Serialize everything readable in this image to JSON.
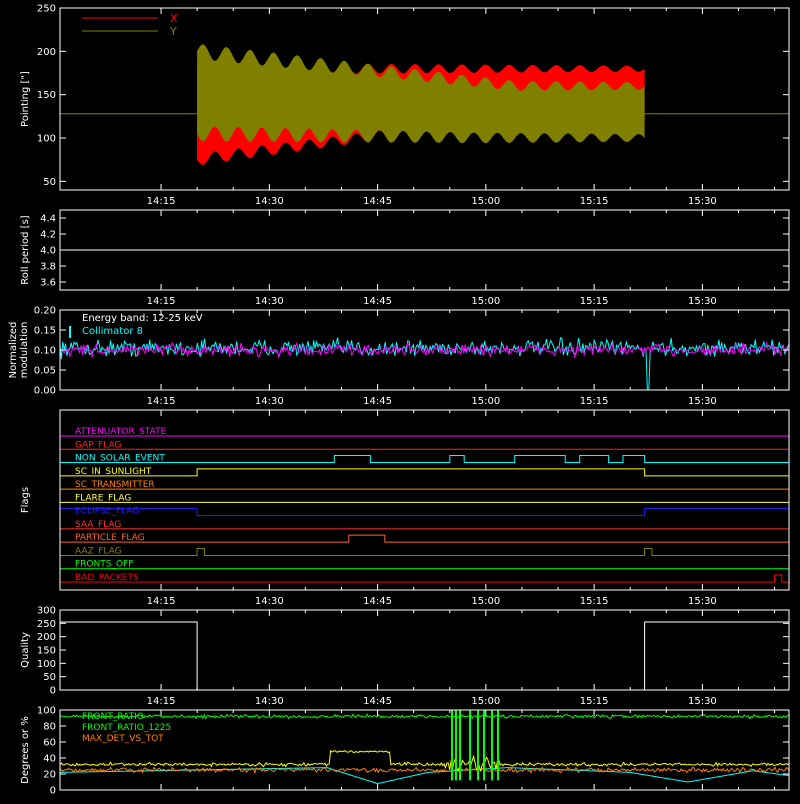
{
  "colors": {
    "background": "#000000",
    "axis": "#ffffff",
    "x_pointing": "#ff0000",
    "y_pointing": "#808000",
    "collimator": "#00ffff",
    "modulation": "#ff00ff",
    "quality": "#ffffff"
  },
  "time_ticks": [
    "14:15",
    "14:30",
    "14:45",
    "15:00",
    "15:15",
    "15:30"
  ],
  "chart_data": [
    {
      "type": "area",
      "panel": "pointing",
      "ylabel": "Pointing [\"]",
      "ylim": [
        40,
        250
      ],
      "yticks": [
        "50",
        "100",
        "150",
        "200",
        "250"
      ],
      "xrange": [
        "14:01",
        "15:42"
      ],
      "legend": {
        "placement": "top-left",
        "entries": [
          {
            "name": "X",
            "color": "#ff0000"
          },
          {
            "name": "Y",
            "color": "#808000"
          }
        ]
      },
      "series": [
        {
          "name": "X",
          "color": "#ff0000",
          "start": "14:20",
          "end": "15:22",
          "band_start": [
            75,
            180
          ],
          "band_end": [
            118,
            180
          ]
        },
        {
          "name": "Y",
          "color": "#808000",
          "start": "14:20",
          "end": "15:22",
          "band_start": [
            105,
            200
          ],
          "band_end": [
            100,
            160
          ]
        }
      ],
      "baseline": 128
    },
    {
      "type": "line",
      "panel": "roll",
      "ylabel": "Roll period [s]",
      "ylim": [
        3.5,
        4.5
      ],
      "yticks": [
        "3.6",
        "3.8",
        "4.0",
        "4.2",
        "4.4"
      ],
      "series": [
        {
          "name": "",
          "color": "#ffffff",
          "values": [
            4.0,
            4.0
          ]
        }
      ]
    },
    {
      "type": "line",
      "panel": "modulation",
      "ylabel": "Normalized modulation",
      "ylim": [
        0,
        0.2
      ],
      "yticks": [
        "0.00",
        "0.05",
        "0.10",
        "0.15",
        "0.20"
      ],
      "annotation": "Energy band: 12-25 keV",
      "legend": {
        "placement": "top-left",
        "entries": [
          {
            "name": "Collimator 8",
            "color": "#00ffff"
          }
        ]
      },
      "series": [
        {
          "name": "Collimator 8",
          "color": "#00ffff",
          "mean": 0.105
        },
        {
          "name": "",
          "color": "#ff00ff",
          "mean": 0.1
        }
      ]
    },
    {
      "type": "line",
      "panel": "flags",
      "ylabel": "Flags",
      "flags": [
        {
          "name": "ATTENUATOR_STATE",
          "color": "#ff00ff",
          "on": []
        },
        {
          "name": "GAP_FLAG",
          "color": "#ff2020",
          "on": []
        },
        {
          "name": "NON_SOLAR_EVENT",
          "color": "#00ffff",
          "on": [
            [
              "14:39",
              "14:44"
            ],
            [
              "14:55",
              "14:57"
            ],
            [
              "15:04",
              "15:11"
            ],
            [
              "15:13",
              "15:17"
            ],
            [
              "15:19",
              "15:22"
            ]
          ]
        },
        {
          "name": "SC_IN_SUNLIGHT",
          "color": "#ffff00",
          "on": [
            [
              "14:20",
              "15:22"
            ]
          ]
        },
        {
          "name": "SC_TRANSMITTER",
          "color": "#ff8000",
          "on": []
        },
        {
          "name": "FLARE_FLAG",
          "color": "#ffff40",
          "on": []
        },
        {
          "name": "ECLIPSE_FLAG",
          "color": "#2020ff",
          "on": [
            [
              "14:01",
              "14:20"
            ],
            [
              "15:22",
              "15:42"
            ]
          ]
        },
        {
          "name": "SAA_FLAG",
          "color": "#ff3030",
          "on": []
        },
        {
          "name": "PARTICLE_FLAG",
          "color": "#ff6020",
          "on": [
            [
              "14:41",
              "14:46"
            ]
          ]
        },
        {
          "name": "AAZ_FLAG",
          "color": "#808000",
          "on": [
            [
              "14:20",
              "14:21"
            ],
            [
              "15:22",
              "15:23"
            ]
          ]
        },
        {
          "name": "FRONTS_OFF",
          "color": "#00ff00",
          "on": []
        },
        {
          "name": "BAD_PACKETS",
          "color": "#ff0000",
          "on": [
            [
              "15:40",
              "15:41"
            ]
          ]
        }
      ]
    },
    {
      "type": "line",
      "panel": "quality",
      "ylabel": "Quality",
      "ylim": [
        0,
        300
      ],
      "yticks": [
        "0",
        "50",
        "100",
        "150",
        "200",
        "250",
        "300"
      ],
      "series": [
        {
          "name": "",
          "color": "#ffffff",
          "segments": [
            {
              "from": "14:01",
              "to": "14:20",
              "value": 255
            },
            {
              "from": "14:20",
              "to": "15:22",
              "value": 0
            },
            {
              "from": "15:22",
              "to": "15:42",
              "value": 255
            }
          ]
        }
      ]
    },
    {
      "type": "line",
      "panel": "ratios",
      "ylabel": "Degrees or %",
      "ylim": [
        0,
        100
      ],
      "yticks": [
        "0",
        "20",
        "40",
        "60",
        "80",
        "100"
      ],
      "legend": {
        "placement": "top-left",
        "entries": [
          {
            "name": "FRONT_RATIO",
            "color": "#00ff00"
          },
          {
            "name": "FRONT_RATIO_1225",
            "color": "#00ff00"
          },
          {
            "name": "MAX_DET_VS_TOT",
            "color": "#ff8000"
          }
        ]
      },
      "series": [
        {
          "name": "FRONT_RATIO",
          "color": "#00ff00",
          "mean": 92
        },
        {
          "name": "",
          "color": "#ffff00",
          "mean": 33
        },
        {
          "name": "MAX_DET_VS_TOT",
          "color": "#ff8000",
          "mean": 25
        },
        {
          "name": "",
          "color": "#00ffff",
          "shape": "triangle"
        }
      ]
    }
  ]
}
